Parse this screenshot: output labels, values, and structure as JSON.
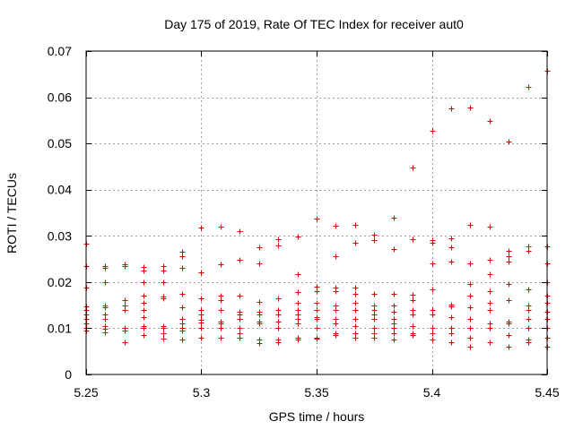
{
  "chart_data": {
    "type": "scatter",
    "title": "Day 175 of 2019, Rate Of TEC Index for receiver aut0",
    "xlabel": "GPS time / hours",
    "ylabel": "ROTI / TECUs",
    "xlim": [
      5.25,
      5.45
    ],
    "ylim": [
      0,
      0.07
    ],
    "grid": true,
    "marker": "+",
    "color": "#e00000",
    "xticks": [
      5.25,
      5.3,
      5.35,
      5.4,
      5.45
    ],
    "xtick_labels": [
      "5.25",
      "5.3",
      "5.35",
      "5.4",
      "5.45"
    ],
    "yticks": [
      0,
      0.01,
      0.02,
      0.03,
      0.04,
      0.05,
      0.06,
      0.07
    ],
    "ytick_labels": [
      "0",
      "0.01",
      "0.02",
      "0.03",
      "0.04",
      "0.05",
      "0.06",
      "0.07"
    ],
    "series": [
      {
        "x": 5.25,
        "y": [
          0.0284,
          0.0235,
          0.0188,
          0.0148,
          0.014,
          0.013,
          0.012,
          0.011,
          0.01,
          0.0095
        ]
      },
      {
        "x": 5.2583,
        "y": [
          0.0235,
          0.023,
          0.02,
          0.015,
          0.0145,
          0.013,
          0.012,
          0.0105,
          0.0098,
          0.0092
        ]
      },
      {
        "x": 5.2667,
        "y": [
          0.0238,
          0.0235,
          0.016,
          0.015,
          0.014,
          0.01,
          0.0095,
          0.007
        ]
      },
      {
        "x": 5.275,
        "y": [
          0.0232,
          0.0225,
          0.02,
          0.017,
          0.0155,
          0.014,
          0.0125,
          0.0105,
          0.01,
          0.0085
        ]
      },
      {
        "x": 5.2833,
        "y": [
          0.0235,
          0.0225,
          0.02,
          0.0168,
          0.0165,
          0.0105,
          0.01,
          0.009,
          0.0078
        ]
      },
      {
        "x": 5.2917,
        "y": [
          0.0265,
          0.0255,
          0.023,
          0.0175,
          0.0145,
          0.012,
          0.011,
          0.01,
          0.0095,
          0.0075
        ]
      },
      {
        "x": 5.3,
        "y": [
          0.0318,
          0.0222,
          0.0165,
          0.014,
          0.013,
          0.0118,
          0.0112,
          0.01,
          0.008
        ]
      },
      {
        "x": 5.3083,
        "y": [
          0.032,
          0.0238,
          0.017,
          0.016,
          0.014,
          0.0115,
          0.011,
          0.01,
          0.008
        ]
      },
      {
        "x": 5.3167,
        "y": [
          0.031,
          0.0248,
          0.017,
          0.0135,
          0.013,
          0.012,
          0.01,
          0.009,
          0.008
        ]
      },
      {
        "x": 5.325,
        "y": [
          0.0275,
          0.024,
          0.0158,
          0.0135,
          0.013,
          0.0115,
          0.011,
          0.0075,
          0.0068
        ]
      },
      {
        "x": 5.3333,
        "y": [
          0.0292,
          0.028,
          0.0165,
          0.014,
          0.013,
          0.0115,
          0.01,
          0.0075,
          0.007
        ]
      },
      {
        "x": 5.3417,
        "y": [
          0.0298,
          0.0218,
          0.0178,
          0.0155,
          0.014,
          0.013,
          0.012,
          0.011,
          0.008,
          0.0075
        ]
      },
      {
        "x": 5.35,
        "y": [
          0.0338,
          0.019,
          0.018,
          0.0155,
          0.014,
          0.0125,
          0.012,
          0.01,
          0.008,
          0.0078
        ]
      },
      {
        "x": 5.3583,
        "y": [
          0.0322,
          0.0255,
          0.0188,
          0.018,
          0.015,
          0.014,
          0.012,
          0.011,
          0.009,
          0.0085
        ]
      },
      {
        "x": 5.3667,
        "y": [
          0.0323,
          0.0285,
          0.0188,
          0.0175,
          0.0155,
          0.014,
          0.012,
          0.0105,
          0.009,
          0.008
        ]
      },
      {
        "x": 5.375,
        "y": [
          0.0302,
          0.029,
          0.0175,
          0.015,
          0.014,
          0.013,
          0.012,
          0.01,
          0.009,
          0.008
        ]
      },
      {
        "x": 5.3833,
        "y": [
          0.034,
          0.0272,
          0.0175,
          0.015,
          0.0135,
          0.012,
          0.011,
          0.01,
          0.009,
          0.0075
        ]
      },
      {
        "x": 5.3917,
        "y": [
          0.0447,
          0.0292,
          0.0172,
          0.016,
          0.014,
          0.013,
          0.0105,
          0.009,
          0.0085
        ]
      },
      {
        "x": 5.4,
        "y": [
          0.0528,
          0.029,
          0.0285,
          0.024,
          0.0185,
          0.014,
          0.013,
          0.01,
          0.009,
          0.0075
        ]
      },
      {
        "x": 5.4083,
        "y": [
          0.0576,
          0.0295,
          0.0275,
          0.0245,
          0.0152,
          0.0148,
          0.0125,
          0.01,
          0.009,
          0.007
        ]
      },
      {
        "x": 5.4167,
        "y": [
          0.0578,
          0.0323,
          0.024,
          0.0195,
          0.017,
          0.0145,
          0.012,
          0.01,
          0.008,
          0.006
        ]
      },
      {
        "x": 5.425,
        "y": [
          0.0548,
          0.032,
          0.0248,
          0.0218,
          0.018,
          0.0155,
          0.014,
          0.011,
          0.01,
          0.007
        ]
      },
      {
        "x": 5.4333,
        "y": [
          0.0505,
          0.0268,
          0.0255,
          0.0245,
          0.0195,
          0.016,
          0.0115,
          0.011,
          0.0085,
          0.006
        ]
      },
      {
        "x": 5.4417,
        "y": [
          0.0622,
          0.0278,
          0.0268,
          0.0185,
          0.0185,
          0.015,
          0.014,
          0.012,
          0.01,
          0.0075,
          0.007
        ]
      },
      {
        "x": 5.45,
        "y": [
          0.0658,
          0.0278,
          0.024,
          0.02,
          0.017,
          0.0155,
          0.0135,
          0.012,
          0.01,
          0.008,
          0.006
        ]
      }
    ]
  }
}
